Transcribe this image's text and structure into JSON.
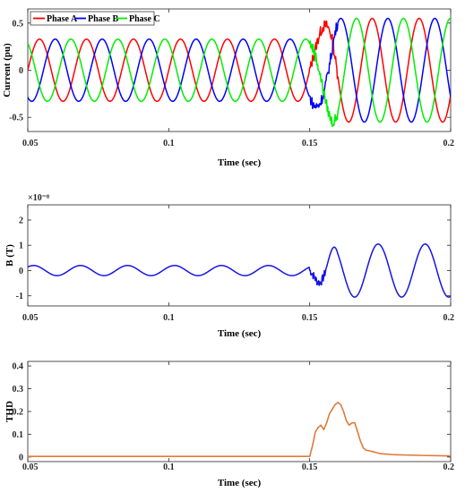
{
  "chart_data": [
    {
      "type": "line",
      "title": "",
      "xlabel": "Time (sec)",
      "ylabel": "Current (pu)",
      "xlim": [
        0.05,
        0.2
      ],
      "ylim": [
        -0.65,
        0.65
      ],
      "xticks": [
        "0.05",
        "0.1",
        "0.15",
        "0.2"
      ],
      "xtick_values": [
        0.05,
        0.1,
        0.15,
        0.2
      ],
      "yticks": [
        "-0.5",
        "0",
        "0.5"
      ],
      "ytick_values": [
        -0.5,
        0,
        0.5
      ],
      "legend_position": "top-left",
      "series": [
        {
          "name": "Phase A",
          "color": "#ff0000",
          "pre_amplitude": 0.33,
          "post_amplitude": 0.55,
          "phase_deg": 0
        },
        {
          "name": "Phase B",
          "color": "#0000ff",
          "pre_amplitude": 0.33,
          "post_amplitude": 0.55,
          "phase_deg": -120
        },
        {
          "name": "Phase C",
          "color": "#00ee00",
          "pre_amplitude": 0.33,
          "post_amplitude": 0.55,
          "phase_deg": 120
        }
      ],
      "frequency_hz": 60,
      "fault_start": 0.15,
      "transient_end": 0.158
    },
    {
      "type": "line",
      "title": "",
      "xlabel": "Time (sec)",
      "ylabel": "B (T)",
      "y_multiplier_label": "×10⁻⁸",
      "xlim": [
        0.05,
        0.2
      ],
      "ylim": [
        -1.4,
        2.6
      ],
      "xticks": [
        "0.05",
        "0.1",
        "0.15",
        "0.2"
      ],
      "xtick_values": [
        0.05,
        0.1,
        0.15,
        0.2
      ],
      "yticks": [
        "-1",
        "0",
        "1",
        "2"
      ],
      "ytick_values": [
        -1,
        0,
        1,
        2
      ],
      "series": [
        {
          "name": "",
          "color": "#1515e6",
          "pre_amplitude": 0.2,
          "post_amplitude": 1.05,
          "frequency_hz": 60
        }
      ],
      "fault_start": 0.15
    },
    {
      "type": "line",
      "title": "",
      "xlabel": "Time (sec)",
      "ylabel": "THD",
      "xlim": [
        0.05,
        0.2
      ],
      "ylim": [
        -0.02,
        0.42
      ],
      "xticks": [
        "0.05",
        "0.1",
        "0.15",
        "0.2"
      ],
      "xtick_values": [
        0.05,
        0.1,
        0.15,
        0.2
      ],
      "yticks": [
        "0",
        "0.1",
        "0.2",
        "0.3",
        "0.4"
      ],
      "ytick_values": [
        0,
        0.1,
        0.2,
        0.3,
        0.4
      ],
      "series": [
        {
          "name": "",
          "color": "#e07a3c",
          "x": [
            0.05,
            0.15,
            0.151,
            0.152,
            0.153,
            0.154,
            0.155,
            0.156,
            0.157,
            0.158,
            0.159,
            0.16,
            0.161,
            0.162,
            0.163,
            0.164,
            0.165,
            0.166,
            0.167,
            0.168,
            0.169,
            0.17,
            0.172,
            0.175,
            0.18,
            0.19,
            0.2
          ],
          "y": [
            0.003,
            0.003,
            0.05,
            0.11,
            0.13,
            0.14,
            0.12,
            0.15,
            0.19,
            0.21,
            0.23,
            0.24,
            0.23,
            0.2,
            0.16,
            0.14,
            0.15,
            0.15,
            0.11,
            0.07,
            0.04,
            0.03,
            0.025,
            0.015,
            0.01,
            0.007,
            0.005
          ]
        }
      ]
    }
  ]
}
